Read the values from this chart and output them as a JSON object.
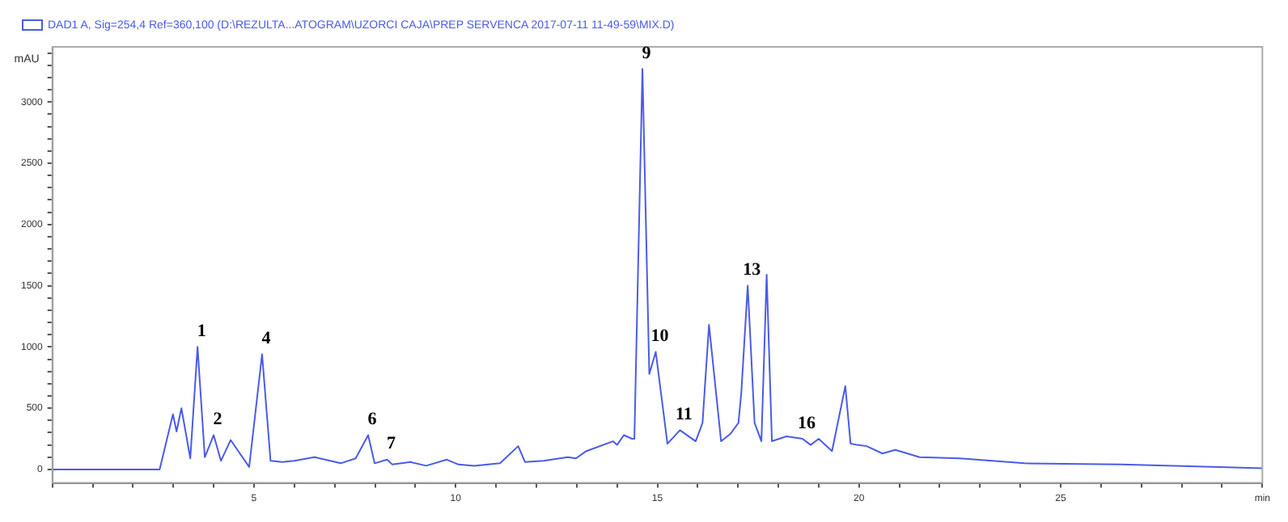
{
  "chart_data": {
    "type": "line",
    "ylabel": "mAU",
    "legend": "top left",
    "marker": "none",
    "line_style": "solid",
    "grid": false,
    "x": [
      0,
      2.66,
      2.99,
      3.08,
      3.2,
      3.42,
      3.6,
      3.78,
      4.0,
      4.18,
      4.42,
      4.88,
      5.2,
      5.41,
      5.7,
      6.0,
      6.5,
      7.15,
      7.52,
      7.83,
      7.99,
      8.3,
      8.43,
      8.88,
      9.27,
      9.78,
      10.07,
      10.46,
      11.1,
      11.55,
      11.72,
      12.18,
      12.78,
      12.98,
      13.24,
      13.9,
      14.0,
      14.17,
      14.37,
      14.43,
      14.63,
      14.8,
      14.96,
      15.25,
      15.56,
      15.95,
      16.12,
      16.28,
      16.58,
      16.81,
      17.01,
      17.08,
      17.24,
      17.41,
      17.58,
      17.71,
      17.84,
      18.2,
      18.6,
      18.8,
      19.0,
      19.33,
      19.66,
      19.79,
      19.96,
      20.19,
      20.58,
      20.9,
      21.5,
      22.5,
      24.1,
      26.5,
      30
    ],
    "series": [
      {
        "name": "DAD1 A, Sig=254,4 Ref=360,100 (D:\\REZULTA...ATOGRAM\\UZORCI CAJA\\PREP SERVENCA 2017-07-11 11-49-59\\MIX.D)",
        "color": "#4a5be8",
        "values": [
          0,
          0,
          450,
          310,
          500,
          90,
          1000,
          100,
          280,
          70,
          240,
          20,
          940,
          70,
          60,
          70,
          100,
          50,
          90,
          280,
          50,
          80,
          40,
          60,
          30,
          80,
          40,
          30,
          50,
          190,
          60,
          70,
          100,
          90,
          150,
          230,
          200,
          280,
          250,
          250,
          3270,
          780,
          960,
          210,
          320,
          230,
          380,
          1180,
          230,
          290,
          380,
          620,
          1500,
          380,
          230,
          1590,
          230,
          270,
          250,
          200,
          250,
          150,
          680,
          210,
          200,
          190,
          130,
          160,
          100,
          90,
          50,
          40,
          10
        ]
      }
    ],
    "annotations": [
      {
        "text": "1",
        "x": 3.6,
        "y": 1000
      },
      {
        "text": "2",
        "x": 4.0,
        "y": 280
      },
      {
        "text": "4",
        "x": 5.2,
        "y": 940
      },
      {
        "text": "6",
        "x": 7.83,
        "y": 280
      },
      {
        "text": "7",
        "x": 8.3,
        "y": 80
      },
      {
        "text": "9",
        "x": 14.63,
        "y": 3270
      },
      {
        "text": "10",
        "x": 14.96,
        "y": 960
      },
      {
        "text": "11",
        "x": 15.56,
        "y": 320
      },
      {
        "text": "13",
        "x": 17.24,
        "y": 1500
      },
      {
        "text": "16",
        "x": 18.6,
        "y": 250
      }
    ],
    "xlim": [
      0,
      30
    ],
    "xticks": [
      {
        "value": 0,
        "label": null
      },
      {
        "value": 1,
        "label": null
      },
      {
        "value": 2,
        "label": null
      },
      {
        "value": 3,
        "label": null
      },
      {
        "value": 4,
        "label": null
      },
      5,
      {
        "value": 6,
        "label": null
      },
      {
        "value": 7,
        "label": null
      },
      {
        "value": 8,
        "label": null
      },
      {
        "value": 9,
        "label": null
      },
      10,
      {
        "value": 11,
        "label": null
      },
      {
        "value": 12,
        "label": null
      },
      {
        "value": 13,
        "label": null
      },
      {
        "value": 14,
        "label": null
      },
      15,
      {
        "value": 16,
        "label": null
      },
      {
        "value": 17,
        "label": null
      },
      {
        "value": 18,
        "label": null
      },
      {
        "value": 19,
        "label": null
      },
      20,
      {
        "value": 21,
        "label": null
      },
      {
        "value": 22,
        "label": null
      },
      {
        "value": 23,
        "label": null
      },
      {
        "value": 24,
        "label": null
      },
      25,
      {
        "value": 26,
        "label": null
      },
      {
        "value": 27,
        "label": null
      },
      {
        "value": 28,
        "label": null
      },
      {
        "value": 29,
        "label": null
      },
      {
        "value": 30,
        "label": "min"
      }
    ],
    "ylim": [
      -110,
      3450
    ],
    "yticks": [
      0,
      {
        "value": 100,
        "label": null
      },
      {
        "value": 200,
        "label": null
      },
      {
        "value": 300,
        "label": null
      },
      {
        "value": 400,
        "label": null
      },
      500,
      {
        "value": 600,
        "label": null
      },
      {
        "value": 700,
        "label": null
      },
      {
        "value": 800,
        "label": null
      },
      {
        "value": 900,
        "label": null
      },
      1000,
      {
        "value": 1100,
        "label": null
      },
      {
        "value": 1200,
        "label": null
      },
      {
        "value": 1300,
        "label": null
      },
      {
        "value": 1400,
        "label": null
      },
      1500,
      {
        "value": 1600,
        "label": null
      },
      {
        "value": 1700,
        "label": null
      },
      {
        "value": 1800,
        "label": null
      },
      {
        "value": 1900,
        "label": null
      },
      2000,
      {
        "value": 2100,
        "label": null
      },
      {
        "value": 2200,
        "label": null
      },
      {
        "value": 2300,
        "label": null
      },
      {
        "value": 2400,
        "label": null
      },
      2500,
      {
        "value": 2600,
        "label": null
      },
      {
        "value": 2700,
        "label": null
      },
      {
        "value": 2800,
        "label": null
      },
      {
        "value": 2900,
        "label": null
      },
      3000,
      {
        "value": 3100,
        "label": null
      },
      {
        "value": 3200,
        "label": null
      },
      {
        "value": 3300,
        "label": null
      },
      {
        "value": 3400,
        "label": null
      }
    ]
  }
}
